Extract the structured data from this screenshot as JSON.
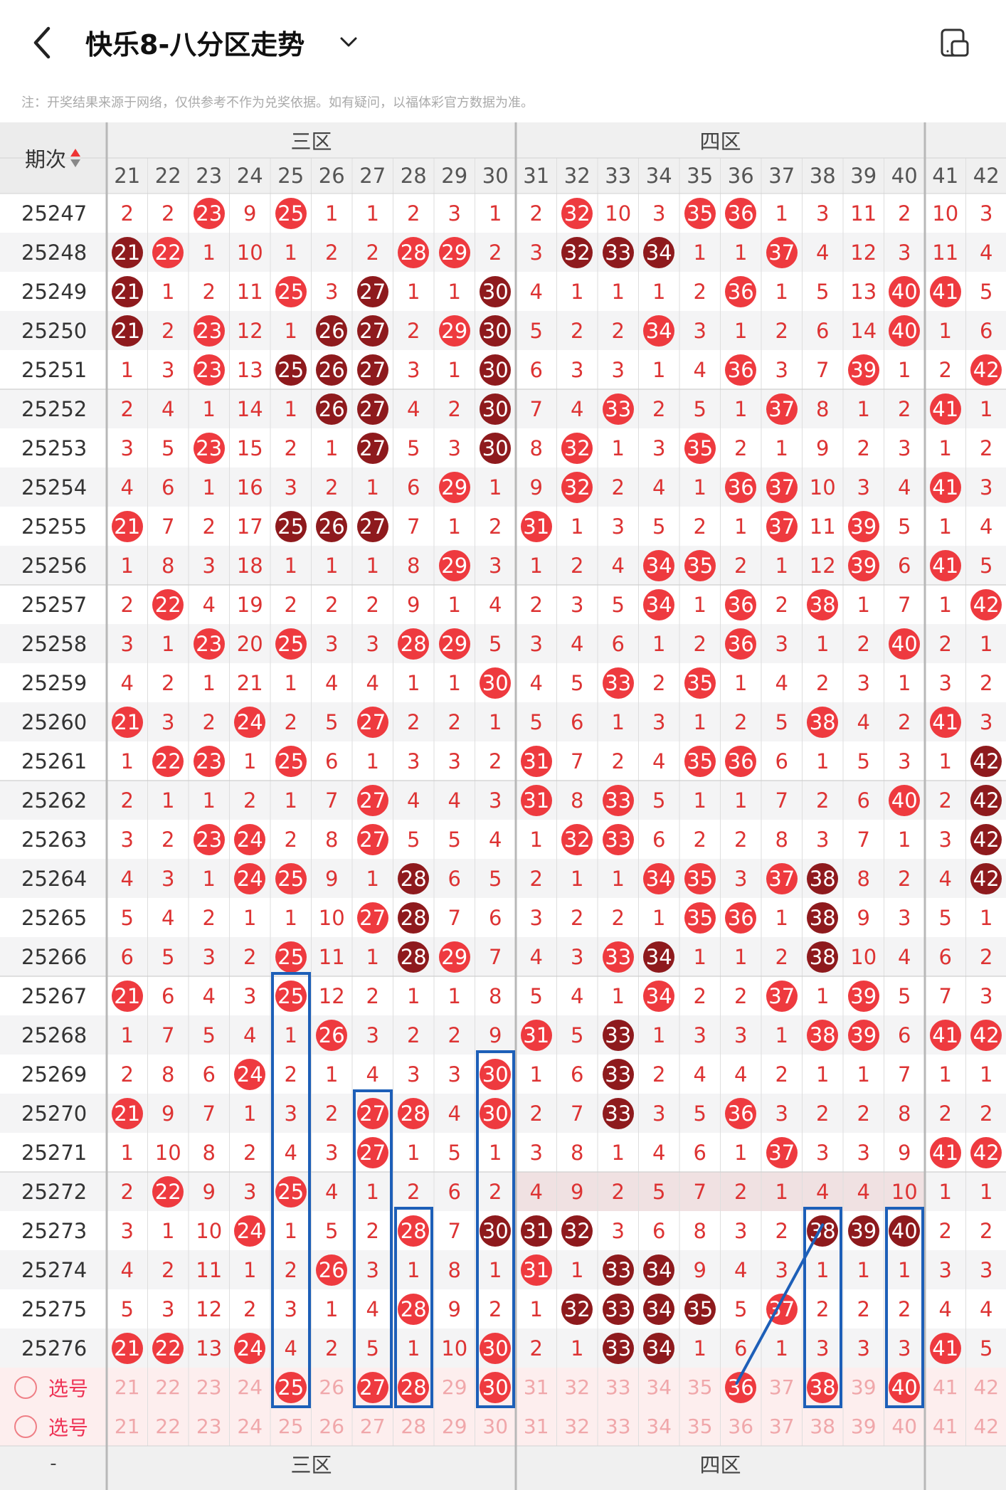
{
  "header": {
    "title": "快乐8-八分区走势",
    "back_icon": "chevron-left-icon",
    "dropdown_icon": "chevron-down-icon",
    "layout_icon": "layout-toggle-icon"
  },
  "notice": "注：开奖结果来源于网络，仅供参考不作为兑奖依据。如有疑问，以福体彩官方数据为准。",
  "table": {
    "issue_header": "期次",
    "zones": [
      "三区",
      "四区"
    ],
    "columns": [
      "21",
      "22",
      "23",
      "24",
      "25",
      "26",
      "27",
      "28",
      "29",
      "30",
      "31",
      "32",
      "33",
      "34",
      "35",
      "36",
      "37",
      "38",
      "39",
      "40",
      "41",
      "42"
    ],
    "rows": [
      {
        "issue": "25247",
        "cells": [
          "2",
          "2",
          "@23",
          "9",
          "@25",
          "1",
          "1",
          "2",
          "3",
          "1",
          "2",
          "@32",
          "10",
          "3",
          "@35",
          "@36",
          "1",
          "3",
          "11",
          "2",
          "10",
          "3"
        ]
      },
      {
        "issue": "25248",
        "cells": [
          "#21",
          "@22",
          "1",
          "10",
          "1",
          "2",
          "2",
          "@28",
          "@29",
          "2",
          "3",
          "#32",
          "#33",
          "#34",
          "1",
          "1",
          "@37",
          "4",
          "12",
          "3",
          "11",
          "4"
        ]
      },
      {
        "issue": "25249",
        "cells": [
          "#21",
          "1",
          "2",
          "11",
          "@25",
          "3",
          "#27",
          "1",
          "1",
          "#30",
          "4",
          "1",
          "1",
          "1",
          "2",
          "@36",
          "1",
          "5",
          "13",
          "@40",
          "@41",
          "5"
        ]
      },
      {
        "issue": "25250",
        "cells": [
          "#21",
          "2",
          "@23",
          "12",
          "1",
          "#26",
          "#27",
          "2",
          "@29",
          "#30",
          "5",
          "2",
          "2",
          "@34",
          "3",
          "1",
          "2",
          "6",
          "14",
          "@40",
          "1",
          "6"
        ]
      },
      {
        "issue": "25251",
        "cells": [
          "1",
          "3",
          "@23",
          "13",
          "#25",
          "#26",
          "#27",
          "3",
          "1",
          "#30",
          "6",
          "3",
          "3",
          "1",
          "4",
          "@36",
          "3",
          "7",
          "@39",
          "1",
          "2",
          "@42"
        ]
      },
      {
        "issue": "25252",
        "cells": [
          "2",
          "4",
          "1",
          "14",
          "1",
          "#26",
          "#27",
          "4",
          "2",
          "#30",
          "7",
          "4",
          "@33",
          "2",
          "5",
          "1",
          "@37",
          "8",
          "1",
          "2",
          "@41",
          "1"
        ]
      },
      {
        "issue": "25253",
        "cells": [
          "3",
          "5",
          "@23",
          "15",
          "2",
          "1",
          "#27",
          "5",
          "3",
          "#30",
          "8",
          "@32",
          "1",
          "3",
          "@35",
          "2",
          "1",
          "9",
          "2",
          "3",
          "1",
          "2"
        ]
      },
      {
        "issue": "25254",
        "cells": [
          "4",
          "6",
          "1",
          "16",
          "3",
          "2",
          "1",
          "6",
          "@29",
          "1",
          "9",
          "@32",
          "2",
          "4",
          "1",
          "@36",
          "@37",
          "10",
          "3",
          "4",
          "@41",
          "3"
        ]
      },
      {
        "issue": "25255",
        "cells": [
          "@21",
          "7",
          "2",
          "17",
          "#25",
          "#26",
          "#27",
          "7",
          "1",
          "2",
          "@31",
          "1",
          "3",
          "5",
          "2",
          "1",
          "@37",
          "11",
          "@39",
          "5",
          "1",
          "4"
        ]
      },
      {
        "issue": "25256",
        "cells": [
          "1",
          "8",
          "3",
          "18",
          "1",
          "1",
          "1",
          "8",
          "@29",
          "3",
          "1",
          "2",
          "4",
          "@34",
          "@35",
          "2",
          "1",
          "12",
          "@39",
          "6",
          "@41",
          "5"
        ]
      },
      {
        "issue": "25257",
        "cells": [
          "2",
          "@22",
          "4",
          "19",
          "2",
          "2",
          "2",
          "9",
          "1",
          "4",
          "2",
          "3",
          "5",
          "@34",
          "1",
          "@36",
          "2",
          "@38",
          "1",
          "7",
          "1",
          "@42"
        ]
      },
      {
        "issue": "25258",
        "cells": [
          "3",
          "1",
          "@23",
          "20",
          "@25",
          "3",
          "3",
          "@28",
          "@29",
          "5",
          "3",
          "4",
          "6",
          "1",
          "2",
          "@36",
          "3",
          "1",
          "2",
          "@40",
          "2",
          "1"
        ]
      },
      {
        "issue": "25259",
        "cells": [
          "4",
          "2",
          "1",
          "21",
          "1",
          "4",
          "4",
          "1",
          "1",
          "@30",
          "4",
          "5",
          "@33",
          "2",
          "@35",
          "1",
          "4",
          "2",
          "3",
          "1",
          "3",
          "2"
        ]
      },
      {
        "issue": "25260",
        "cells": [
          "@21",
          "3",
          "2",
          "@24",
          "2",
          "5",
          "@27",
          "2",
          "2",
          "1",
          "5",
          "6",
          "1",
          "3",
          "1",
          "2",
          "5",
          "@38",
          "4",
          "2",
          "@41",
          "3"
        ]
      },
      {
        "issue": "25261",
        "cells": [
          "1",
          "@22",
          "@23",
          "1",
          "@25",
          "6",
          "1",
          "3",
          "3",
          "2",
          "@31",
          "7",
          "2",
          "4",
          "@35",
          "@36",
          "6",
          "1",
          "5",
          "3",
          "1",
          "#42"
        ]
      },
      {
        "issue": "25262",
        "cells": [
          "2",
          "1",
          "1",
          "2",
          "1",
          "7",
          "@27",
          "4",
          "4",
          "3",
          "@31",
          "8",
          "@33",
          "5",
          "1",
          "1",
          "7",
          "2",
          "6",
          "@40",
          "2",
          "#42"
        ]
      },
      {
        "issue": "25263",
        "cells": [
          "3",
          "2",
          "@23",
          "@24",
          "2",
          "8",
          "@27",
          "5",
          "5",
          "4",
          "1",
          "@32",
          "@33",
          "6",
          "2",
          "2",
          "8",
          "3",
          "7",
          "1",
          "3",
          "#42"
        ]
      },
      {
        "issue": "25264",
        "cells": [
          "4",
          "3",
          "1",
          "@24",
          "@25",
          "9",
          "1",
          "#28",
          "6",
          "5",
          "2",
          "1",
          "1",
          "@34",
          "@35",
          "3",
          "@37",
          "#38",
          "8",
          "2",
          "4",
          "#42"
        ]
      },
      {
        "issue": "25265",
        "cells": [
          "5",
          "4",
          "2",
          "1",
          "1",
          "10",
          "@27",
          "#28",
          "7",
          "6",
          "3",
          "2",
          "2",
          "1",
          "@35",
          "@36",
          "1",
          "#38",
          "9",
          "3",
          "5",
          "1"
        ]
      },
      {
        "issue": "25266",
        "cells": [
          "6",
          "5",
          "3",
          "2",
          "@25",
          "11",
          "1",
          "#28",
          "@29",
          "7",
          "4",
          "3",
          "@33",
          "#34",
          "1",
          "1",
          "2",
          "#38",
          "10",
          "4",
          "6",
          "2"
        ]
      },
      {
        "issue": "25267",
        "cells": [
          "@21",
          "6",
          "4",
          "3",
          "@25",
          "12",
          "2",
          "1",
          "1",
          "8",
          "5",
          "4",
          "1",
          "@34",
          "2",
          "2",
          "@37",
          "1",
          "@39",
          "5",
          "7",
          "3"
        ]
      },
      {
        "issue": "25268",
        "cells": [
          "1",
          "7",
          "5",
          "4",
          "1",
          "@26",
          "3",
          "2",
          "2",
          "9",
          "@31",
          "5",
          "#33",
          "1",
          "3",
          "3",
          "1",
          "@38",
          "@39",
          "6",
          "@41",
          "@42"
        ]
      },
      {
        "issue": "25269",
        "cells": [
          "2",
          "8",
          "6",
          "@24",
          "2",
          "1",
          "4",
          "3",
          "3",
          "@30",
          "1",
          "6",
          "#33",
          "2",
          "4",
          "4",
          "2",
          "1",
          "1",
          "7",
          "1",
          "1"
        ]
      },
      {
        "issue": "25270",
        "cells": [
          "@21",
          "9",
          "7",
          "1",
          "3",
          "2",
          "@27",
          "@28",
          "4",
          "@30",
          "2",
          "7",
          "#33",
          "3",
          "5",
          "@36",
          "3",
          "2",
          "2",
          "8",
          "2",
          "2"
        ]
      },
      {
        "issue": "25271",
        "cells": [
          "1",
          "10",
          "8",
          "2",
          "4",
          "3",
          "@27",
          "1",
          "5",
          "1",
          "3",
          "8",
          "1",
          "4",
          "6",
          "1",
          "@37",
          "3",
          "3",
          "9",
          "@41",
          "@42"
        ]
      },
      {
        "issue": "25272",
        "cells": [
          "2",
          "@22",
          "9",
          "3",
          "@25",
          "4",
          "1",
          "2",
          "6",
          "2",
          "4",
          "9",
          "2",
          "5",
          "7",
          "2",
          "1",
          "4",
          "4",
          "10",
          "1",
          "1"
        ]
      },
      {
        "issue": "25273",
        "cells": [
          "3",
          "1",
          "10",
          "@24",
          "1",
          "5",
          "2",
          "@28",
          "7",
          "#30",
          "#31",
          "#32",
          "3",
          "6",
          "8",
          "3",
          "2",
          "#38",
          "#39",
          "#40",
          "2",
          "2"
        ]
      },
      {
        "issue": "25274",
        "cells": [
          "4",
          "2",
          "11",
          "1",
          "2",
          "@26",
          "3",
          "1",
          "8",
          "1",
          "@31",
          "1",
          "#33",
          "#34",
          "9",
          "4",
          "3",
          "1",
          "1",
          "1",
          "3",
          "3"
        ]
      },
      {
        "issue": "25275",
        "cells": [
          "5",
          "3",
          "12",
          "2",
          "3",
          "1",
          "4",
          "@28",
          "9",
          "2",
          "1",
          "#32",
          "#33",
          "#34",
          "#35",
          "5",
          "@37",
          "2",
          "2",
          "2",
          "4",
          "4"
        ]
      },
      {
        "issue": "25276",
        "cells": [
          "@21",
          "@22",
          "13",
          "@24",
          "4",
          "2",
          "5",
          "1",
          "10",
          "@30",
          "2",
          "1",
          "#33",
          "#34",
          "1",
          "6",
          "1",
          "3",
          "3",
          "3",
          "@41",
          "5"
        ]
      }
    ],
    "select_label": "选号",
    "select_rows": [
      {
        "label": "选号",
        "picked": [
          "25",
          "27",
          "28",
          "30",
          "36",
          "38",
          "40"
        ]
      },
      {
        "label": "选号",
        "picked": []
      }
    ],
    "footer_dash": "-"
  }
}
